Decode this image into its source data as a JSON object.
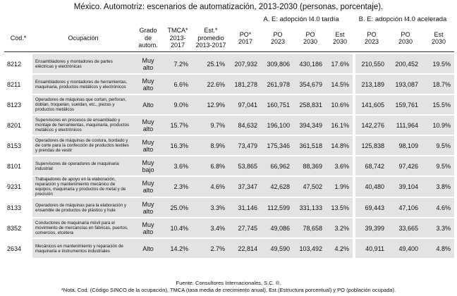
{
  "title": "México. Automotriz: escenarios de automatización, 2013-2030 (personas, porcentaje).",
  "group_headers": {
    "late": "A. E: adopción I4.0 tardía",
    "accel": "B. E: adopción I4.0 acelerada"
  },
  "columns": {
    "cod": "Cod.*",
    "ocupacion": "Ocupación",
    "grado": "Grado\nde\nautom.",
    "tmca": "TMCA*\n2013-\n2017",
    "est_prom": "Est.*\npromedio\n2013-2017",
    "po2017": "PO*\n2017",
    "po2023a": "PO\n2023",
    "po2030a": "PO\n2030",
    "est2030a": "Est\n2030",
    "po2023b": "PO\n2023",
    "po2030b": "PO\n2030",
    "est2030b": "Est\n2030"
  },
  "rows": [
    {
      "cod": "8212",
      "ocupacion": "Ensambladores y montadores de partes eléctricas y electrónicas",
      "grado": "Muy\nalto",
      "tmca": "7.2%",
      "est": "25.1%",
      "po2017": "207,932",
      "po2023a": "309,806",
      "po2030a": "430,186",
      "est2030a": "17.6%",
      "po2023b": "210,550",
      "po2030b": "200,452",
      "est2030b": "19.5%"
    },
    {
      "cod": "8211",
      "ocupacion": "Ensambladores y montadores de herramientas, maquinaria, productos metálicos y electrónicos",
      "grado": "Muy\nalto",
      "tmca": "6.6%",
      "est": "22.6%",
      "po2017": "181,278",
      "po2023a": "261,978",
      "po2030a": "354,679",
      "est2030a": "14.5%",
      "po2023b": "213,189",
      "po2030b": "193,087",
      "est2030b": "18.7%"
    },
    {
      "cod": "8123",
      "ocupacion": "Operadores de máquinas que cortan, perforan, doblan, troquelan, sueldan, etc., piezas y productos metálicos",
      "grado": "Alto",
      "tmca": "9.0%",
      "est": "12.9%",
      "po2017": "97,041",
      "po2023a": "160,751",
      "po2030a": "258,831",
      "est2030a": "10.6%",
      "po2023b": "141,605",
      "po2030b": "159,761",
      "est2030b": "15.5%"
    },
    {
      "cod": "8201",
      "ocupacion": "Supervisores en procesos de ensamblado y montaje de herramientas, maquinaria, productos metálicos y electrónicos",
      "grado": "Muy\nalto",
      "tmca": "15.7%",
      "est": "9.7%",
      "po2017": "84,632",
      "po2023a": "196,100",
      "po2030a": "394,349",
      "est2030a": "16.1%",
      "po2023b": "142,276",
      "po2030b": "111,964",
      "est2030b": "10.9%"
    },
    {
      "cod": "8153",
      "ocupacion": "Operadores de máquinas de costura, bordado y de corte para la confección de productos textiles y prendas de vestir",
      "grado": "Muy\nalto",
      "tmca": "16.3%",
      "est": "8.9%",
      "po2017": "73,479",
      "po2023a": "175,346",
      "po2030a": "361,518",
      "est2030a": "14.8%",
      "po2023b": "125,838",
      "po2030b": "98,109",
      "est2030b": "9.5%"
    },
    {
      "cod": "8101",
      "ocupacion": "Supervisores de operadores de maquinaria industrial",
      "grado": "Muy\nbajo",
      "tmca": "3.6%",
      "est": "6.8%",
      "po2017": "53,865",
      "po2023a": "66,962",
      "po2030a": "88,369",
      "est2030a": "3.6%",
      "po2023b": "68,742",
      "po2030b": "97,426",
      "est2030b": "9.5%"
    },
    {
      "cod": "9231",
      "ocupacion": "Trabajadores de apoyo en la elaboración, reparación y mantenimiento mecánico de equipos, maquinaria y productos de metal y de precisión",
      "grado": "Muy\nalto",
      "tmca": "2.3%",
      "est": "4.6%",
      "po2017": "37,347",
      "po2023a": "42,628",
      "po2030a": "47,502",
      "est2030a": "1.9%",
      "po2023b": "40,480",
      "po2030b": "39,104",
      "est2030b": "3.8%"
    },
    {
      "cod": "8133",
      "ocupacion": "Operadores de máquinas para la elaboración y ensamble de productos de plástico y hule",
      "grado": "Muy\nalto",
      "tmca": "25.0%",
      "est": "3.3%",
      "po2017": "31,146",
      "po2023a": "112,599",
      "po2030a": "331,133",
      "est2030a": "13.5%",
      "po2023b": "69,443",
      "po2030b": "47,106",
      "est2030b": "4.6%"
    },
    {
      "cod": "8352",
      "ocupacion": "Conductores de maquinaria móvil para el movimiento de mercancías en fábricas, puertos, comercios, etcétera",
      "grado": "Muy\nalto",
      "tmca": "10.4%",
      "est": "3.4%",
      "po2017": "27,745",
      "po2023a": "49,086",
      "po2030a": "78,658",
      "est2030a": "3.2%",
      "po2023b": "39,399",
      "po2030b": "33,665",
      "est2030b": "3.3%"
    },
    {
      "cod": "2634",
      "ocupacion": "Mecánicos en mantenimiento y reparación de maquinaria e instrumentos industriales",
      "grado": "Alto",
      "tmca": "14.2%",
      "est": "2.7%",
      "po2017": "22,814",
      "po2023a": "49,590",
      "po2030a": "103,492",
      "est2030a": "4.2%",
      "po2023b": "40,911",
      "po2030b": "49,400",
      "est2030b": "4.8%"
    }
  ],
  "footer": {
    "source": "Fuente. Consultores Internacionales, S.C. ®.",
    "note": "*Nota. Cod. (Código SINCO de la ocupación), TMCA (tasa media de crecimiento anual), Est.(Estructura porcentual) y PO (población ocupada)."
  }
}
